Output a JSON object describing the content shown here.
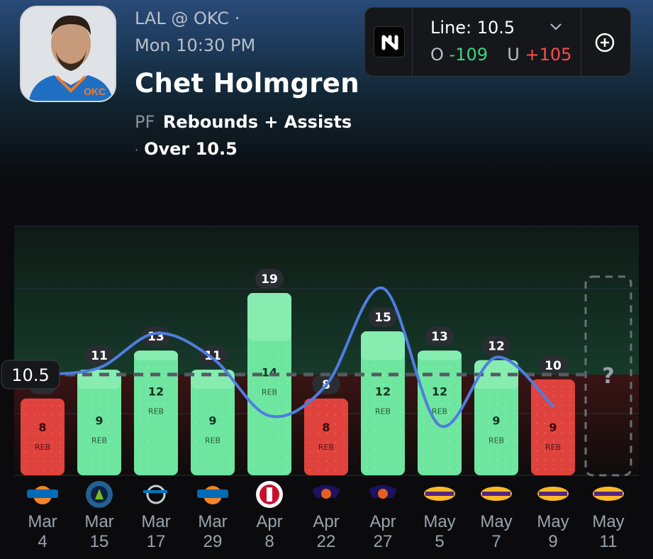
{
  "game": {
    "matchup": "LAL @ OKC",
    "sep": "·",
    "time": "Mon 10:30 PM"
  },
  "player": {
    "name": "Chet Holmgren",
    "position": "PF",
    "stat": "Rebounds + Assists",
    "pick": "Over 10.5"
  },
  "odds": {
    "line_label": "Line: 10.5",
    "over_label": "O",
    "over_odds": "-109",
    "under_label": "U",
    "under_odds": "+105"
  },
  "icons": {
    "book": "sportsbook-logo-icon",
    "add": "plus-circle-icon",
    "dropdown": "chevron-down-icon"
  },
  "colors": {
    "hit": "#6ee6a0",
    "miss": "#e0423d",
    "trend_line": "#4f7de0",
    "avg_line": "#555b63"
  },
  "chart_data": {
    "type": "bar",
    "line": 10.5,
    "line_label": "10.5",
    "ylim": [
      0,
      20
    ],
    "categories": [
      {
        "month": "Mar",
        "day": "4",
        "team": "NYK",
        "total": 8,
        "reb": 8,
        "hit": false
      },
      {
        "month": "Mar",
        "day": "15",
        "team": "MIN",
        "total": 11,
        "reb": 9,
        "hit": true
      },
      {
        "month": "Mar",
        "day": "17",
        "team": "ORL",
        "total": 13,
        "reb": 12,
        "hit": true
      },
      {
        "month": "Mar",
        "day": "29",
        "team": "NYK",
        "total": 11,
        "reb": 9,
        "hit": true
      },
      {
        "month": "Apr",
        "day": "8",
        "team": "LAC",
        "total": 19,
        "reb": 14,
        "hit": true
      },
      {
        "month": "Apr",
        "day": "22",
        "team": "PHX",
        "total": 8,
        "reb": 8,
        "hit": false
      },
      {
        "month": "Apr",
        "day": "27",
        "team": "PHX",
        "total": 15,
        "reb": 12,
        "hit": true
      },
      {
        "month": "May",
        "day": "5",
        "team": "LAL",
        "total": 13,
        "reb": 12,
        "hit": true
      },
      {
        "month": "May",
        "day": "7",
        "team": "LAL",
        "total": 12,
        "reb": 9,
        "hit": true
      },
      {
        "month": "May",
        "day": "9",
        "team": "LAL",
        "total": 10,
        "reb": 9,
        "hit": false
      }
    ],
    "upcoming": {
      "month": "May",
      "day": "11",
      "team": "LAL",
      "label": "?"
    },
    "bar_sublabel": "REB",
    "trend": [
      10.5,
      11.2,
      14.8,
      12.2,
      6.2,
      9.4,
      19.5,
      5.2,
      12.3,
      7.2
    ]
  }
}
